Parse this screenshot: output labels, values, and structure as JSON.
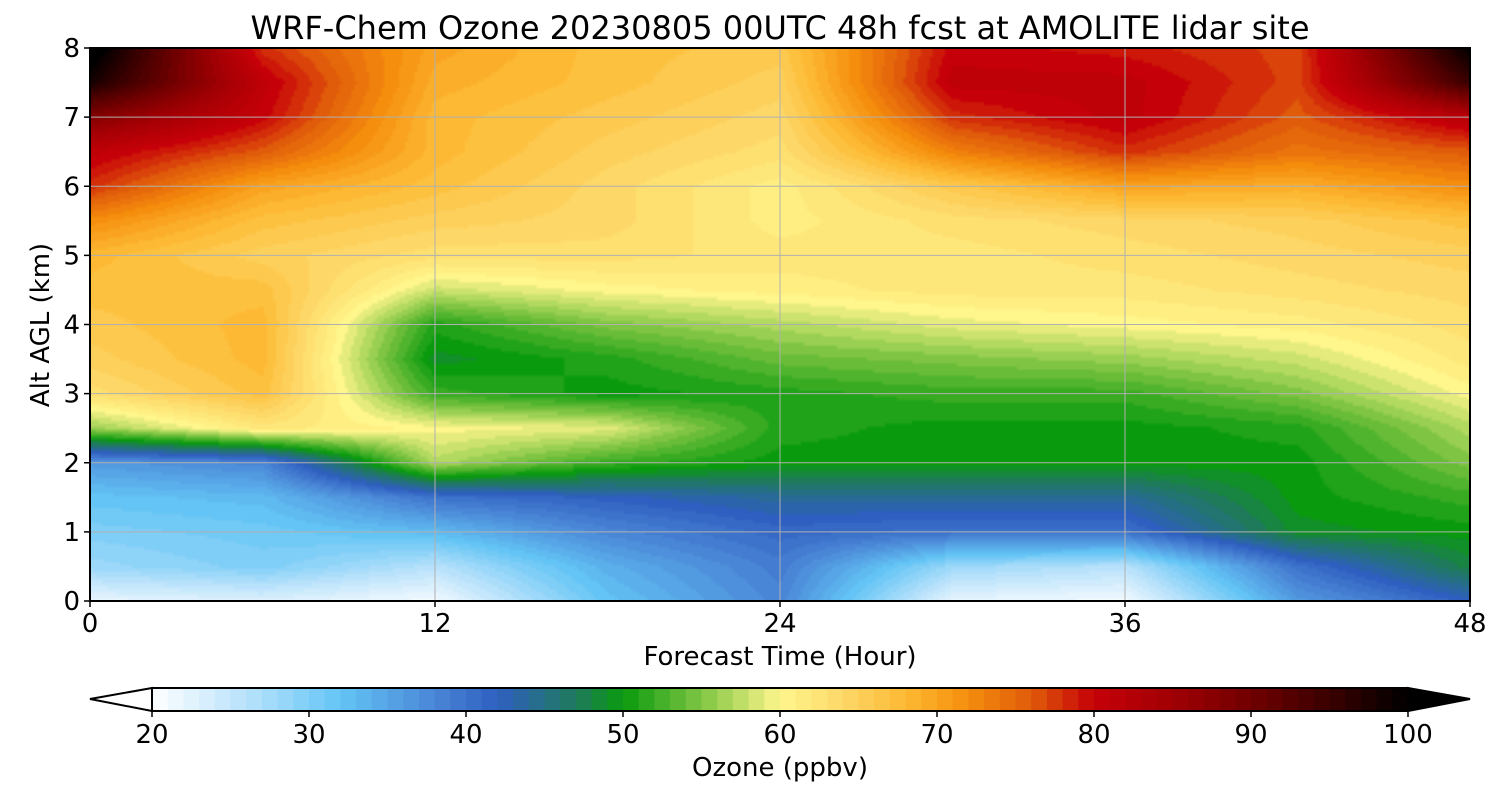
{
  "chart_data": {
    "type": "heatmap",
    "title": "WRF-Chem Ozone  20230805 00UTC 48h fcst at AMOLITE lidar site",
    "xlabel": "Forecast Time (Hour)",
    "ylabel": "Alt AGL (km)",
    "xlim": [
      0,
      48
    ],
    "ylim": [
      0,
      8
    ],
    "x_ticks": [
      0,
      12,
      24,
      36,
      48
    ],
    "y_ticks": [
      0,
      1,
      2,
      3,
      4,
      5,
      6,
      7,
      8
    ],
    "grid": true,
    "colorbar": {
      "label": "Ozone  (ppbv)",
      "min": 20,
      "max": 100,
      "ticks": [
        20,
        30,
        40,
        50,
        60,
        70,
        80,
        90,
        100
      ],
      "extend": "both",
      "orientation": "horizontal",
      "placement": "bottom",
      "under_color": "#ffffff",
      "over_color": "#000000",
      "colormap": [
        [
          20,
          "#ffffff"
        ],
        [
          26,
          "#b8e2fb"
        ],
        [
          32,
          "#63c4f5"
        ],
        [
          38,
          "#4a86d6"
        ],
        [
          42,
          "#2f5fc0"
        ],
        [
          47,
          "#1f7a5c"
        ],
        [
          50,
          "#0a9a0e"
        ],
        [
          55,
          "#7fc543"
        ],
        [
          60,
          "#fff68c"
        ],
        [
          64,
          "#fdd868"
        ],
        [
          68,
          "#fdb933"
        ],
        [
          72,
          "#f58d0d"
        ],
        [
          76,
          "#e05b0a"
        ],
        [
          80,
          "#c60008"
        ],
        [
          85,
          "#a00004"
        ],
        [
          90,
          "#700000"
        ],
        [
          95,
          "#3a0000"
        ],
        [
          100,
          "#000000"
        ]
      ]
    },
    "x": [
      0,
      6,
      12,
      18,
      24,
      30,
      36,
      42,
      48
    ],
    "y": [
      0,
      0.5,
      1,
      1.5,
      2,
      2.5,
      3,
      3.5,
      4,
      4.5,
      5,
      5.5,
      6,
      6.5,
      7,
      7.5,
      8
    ],
    "z_ppbv": [
      [
        22,
        23,
        21,
        32,
        38,
        22,
        21,
        36,
        42
      ],
      [
        28,
        30,
        26,
        34,
        39,
        28,
        26,
        40,
        48
      ],
      [
        30,
        31,
        33,
        38,
        41,
        40,
        40,
        49,
        50
      ],
      [
        32,
        33,
        40,
        42,
        44,
        44,
        44,
        50,
        52
      ],
      [
        36,
        38,
        57,
        52,
        50,
        50,
        50,
        50,
        55
      ],
      [
        56,
        62,
        60,
        59,
        51,
        50,
        50,
        51,
        57
      ],
      [
        63,
        67,
        52,
        50,
        51,
        52,
        52,
        55,
        60
      ],
      [
        65,
        68,
        49,
        51,
        54,
        55,
        56,
        58,
        62
      ],
      [
        66,
        68,
        51,
        55,
        57,
        59,
        60,
        61,
        63
      ],
      [
        67,
        67,
        58,
        60,
        61,
        62,
        62,
        63,
        64
      ],
      [
        68,
        65,
        63,
        63,
        62,
        62,
        63,
        64,
        65
      ],
      [
        72,
        67,
        65,
        64,
        61,
        63,
        64,
        65,
        67
      ],
      [
        78,
        70,
        67,
        64,
        61,
        66,
        70,
        69,
        72
      ],
      [
        81,
        76,
        68,
        65,
        63,
        73,
        78,
        74,
        76
      ],
      [
        88,
        80,
        68,
        66,
        64,
        78,
        81,
        76,
        82
      ],
      [
        98,
        81,
        69,
        67,
        65,
        81,
        81,
        77,
        95
      ],
      [
        102,
        78,
        70,
        67,
        66,
        80,
        79,
        77,
        100
      ]
    ]
  }
}
